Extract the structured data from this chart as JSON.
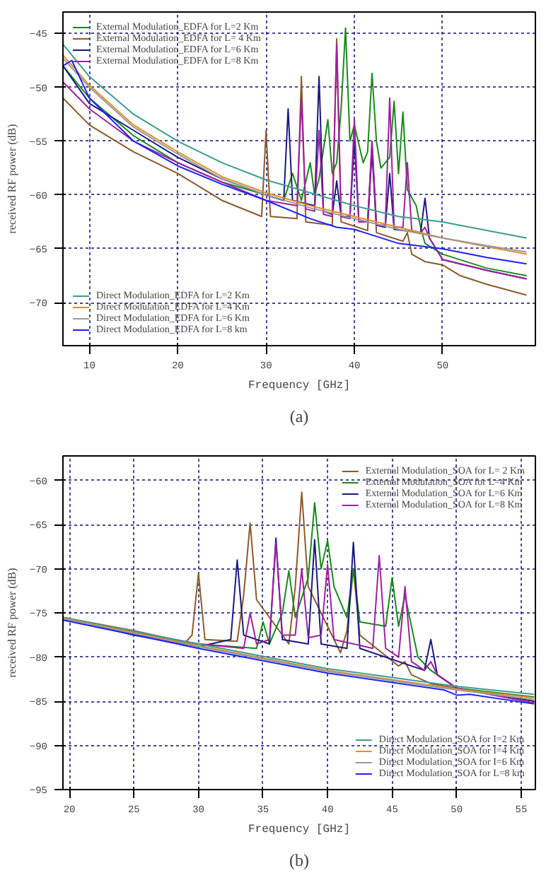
{
  "chart_data": [
    {
      "type": "line",
      "xlabel": "Frequency [GHz]",
      "ylabel": "received RF power (dB)",
      "annotations": [
        "(a)"
      ],
      "xlim": [
        7,
        60.5
      ],
      "ylim": [
        -74,
        -43
      ],
      "xticks": [
        10,
        20,
        30,
        40,
        50
      ],
      "yticks": [
        -45,
        -50,
        -55,
        -60,
        -65,
        -70
      ],
      "grid": true,
      "legend": "top left",
      "line_style": "solid",
      "series": [
        {
          "name": "External Modulation_EDFA for L=2 Km",
          "color": "#1a8a1a",
          "x": [
            7,
            10,
            15,
            20,
            25,
            30,
            32,
            33,
            34,
            35,
            35.5,
            36,
            37,
            37.5,
            38,
            38.5,
            39,
            39.5,
            40,
            41,
            41.5,
            42,
            42.5,
            43,
            44,
            44.5,
            45,
            45.5,
            46,
            47,
            47.5,
            48,
            50,
            55,
            59.5
          ],
          "values": [
            -48,
            -51,
            -54.5,
            -57,
            -58.8,
            -60,
            -60.5,
            -58,
            -60.5,
            -57,
            -60,
            -58.5,
            -53,
            -58,
            -57,
            -52,
            -44.5,
            -55,
            -53.5,
            -57,
            -56,
            -48.7,
            -55,
            -57.5,
            -56.5,
            -51.3,
            -58,
            -52.3,
            -59.5,
            -61,
            -63,
            -64.5,
            -65.5,
            -66.8,
            -67.5
          ]
        },
        {
          "name": "External Modulation_EDFA for L= 4 Km",
          "color": "#8b5a2b",
          "x": [
            7,
            10,
            15,
            20,
            25,
            29.5,
            30,
            30.5,
            33.5,
            34,
            34.5,
            37.5,
            38,
            38.5,
            41.5,
            42,
            42.5,
            45.5,
            46,
            46.5,
            48,
            50,
            52,
            55,
            59.5
          ],
          "values": [
            -51,
            -53.5,
            -56,
            -58,
            -60.5,
            -62,
            -54,
            -62,
            -62.2,
            -49,
            -62.5,
            -62.8,
            -45.5,
            -62.5,
            -63.3,
            -55,
            -63.5,
            -64.3,
            -63.5,
            -65.5,
            -66.2,
            -66.5,
            -67.5,
            -68.3,
            -69.3
          ]
        },
        {
          "name": "External Modulation_EDFA for L=6 Km",
          "color": "#1a1a80",
          "x": [
            7,
            10,
            15,
            20,
            25,
            30,
            32,
            32.5,
            33,
            35.5,
            36,
            36.5,
            37.5,
            38,
            38.5,
            39.5,
            40,
            40.5,
            41.5,
            42,
            42.5,
            43.5,
            44,
            44.5,
            47.5,
            48,
            48.5,
            50,
            55,
            59.5
          ],
          "values": [
            -48,
            -51.5,
            -54,
            -56.5,
            -58.5,
            -60,
            -60.5,
            -52,
            -60.5,
            -61,
            -49,
            -61.5,
            -61.8,
            -58.7,
            -62,
            -62,
            -55,
            -62.3,
            -62.5,
            -56,
            -62.8,
            -63,
            -58,
            -63.2,
            -63.5,
            -60.3,
            -64,
            -66,
            -67,
            -67.8
          ]
        },
        {
          "name": "External Modulation_EDFA for L=8 Km",
          "color": "#a020a0",
          "x": [
            7,
            10,
            15,
            20,
            25,
            30,
            33.5,
            34,
            34.5,
            35.5,
            36,
            36.5,
            37.5,
            38,
            38.5,
            39.5,
            40,
            40.5,
            41.5,
            42,
            42.5,
            43.5,
            44,
            44.5,
            45.5,
            46,
            46.5,
            47.5,
            48,
            48.5,
            50,
            55,
            59.5
          ],
          "values": [
            -49.5,
            -52,
            -55,
            -57,
            -58.8,
            -60.5,
            -61,
            -51,
            -61.3,
            -61.5,
            -54,
            -61.8,
            -62,
            -46,
            -62,
            -62.2,
            -53,
            -62.5,
            -62.5,
            -55,
            -62.8,
            -62.8,
            -51,
            -63,
            -63,
            -57,
            -63.3,
            -63.5,
            -63,
            -64,
            -66,
            -67,
            -67.8
          ]
        },
        {
          "name": "Direct Modulation_EDFA for L=2 Km",
          "color": "#3c9d8f",
          "x": [
            7,
            10,
            15,
            20,
            25,
            30,
            35,
            40,
            45,
            50,
            55,
            59.5
          ],
          "values": [
            -46,
            -49,
            -52.5,
            -55,
            -57,
            -58.6,
            -59.8,
            -61,
            -62,
            -62.5,
            -63.3,
            -64
          ]
        },
        {
          "name": "Direct Modulation_EDFA for L=4 Km",
          "color": "#e0902a",
          "x": [
            7,
            10,
            15,
            20,
            25,
            30,
            35,
            40,
            45,
            50,
            55,
            59.5
          ],
          "values": [
            -47,
            -49.8,
            -53.5,
            -56,
            -58.3,
            -59.8,
            -61,
            -62,
            -63,
            -64,
            -64.8,
            -65.5
          ]
        },
        {
          "name": "Direct Modulation_EDFA for L=6 Km",
          "color": "#999999",
          "x": [
            7,
            10,
            15,
            20,
            25,
            30,
            35,
            40,
            45,
            50,
            55,
            59.5
          ],
          "values": [
            -47.3,
            -50,
            -53.7,
            -56.2,
            -58.5,
            -60,
            -61.2,
            -62.2,
            -63.2,
            -64,
            -64.7,
            -65.3
          ]
        },
        {
          "name": "Direct Modulation_EDFA for L=8 km",
          "color": "#2020ff",
          "x": [
            7,
            8,
            10,
            15,
            20,
            25,
            30,
            35,
            38,
            40,
            45,
            50,
            55,
            59.5
          ],
          "values": [
            -48,
            -47.5,
            -51,
            -55,
            -57.3,
            -59,
            -60.5,
            -62.2,
            -63,
            -63.2,
            -64.5,
            -65,
            -65.8,
            -66.4
          ]
        }
      ]
    },
    {
      "type": "line",
      "xlabel": "Frequency [GHz]",
      "ylabel": "received RF power (dB)",
      "annotations": [
        "(b)"
      ],
      "xlim": [
        19.5,
        56.1
      ],
      "ylim": [
        -95,
        -57.2
      ],
      "xticks": [
        20,
        25,
        30,
        35,
        40,
        45,
        50,
        55
      ],
      "yticks": [
        -60,
        -65,
        -70,
        -75,
        -80,
        -85,
        -90,
        -95
      ],
      "grid": true,
      "legend": "top right",
      "line_style": "solid",
      "series": [
        {
          "name": "External Modulation_SOA for L= 2 Km",
          "color": "#8b5a2b",
          "x": [
            19.5,
            25,
            29,
            29.5,
            30,
            30.5,
            33,
            33.5,
            34,
            34.5,
            37,
            37.5,
            38,
            38.5,
            41,
            41.5,
            42,
            42.5,
            45.5,
            46,
            46.5,
            48,
            50,
            56
          ],
          "values": [
            -75.5,
            -77,
            -78.3,
            -77.5,
            -70.5,
            -78,
            -78.2,
            -73,
            -64.8,
            -73.5,
            -78.5,
            -72,
            -61.3,
            -72,
            -79.5,
            -77,
            -70,
            -77.5,
            -81,
            -80.5,
            -82,
            -83,
            -83.5,
            -85
          ]
        },
        {
          "name": "External Modulation_SOA for L=4 Km",
          "color": "#1a8a1a",
          "x": [
            19.5,
            25,
            30,
            34.5,
            35,
            35.5,
            36.5,
            37,
            37.5,
            38.5,
            39,
            39.5,
            40,
            40.5,
            41.5,
            42,
            42.5,
            44.5,
            45,
            45.5,
            46,
            47,
            48,
            50,
            56
          ],
          "values": [
            -75.5,
            -77.5,
            -78.5,
            -79,
            -76,
            -78.5,
            -75,
            -70.2,
            -75.5,
            -71,
            -62.5,
            -70,
            -66.8,
            -72,
            -75.5,
            -70,
            -76,
            -76.5,
            -71,
            -76.5,
            -73,
            -80,
            -81.5,
            -83.5,
            -84.5
          ]
        },
        {
          "name": "External Modulation_SOA for L=6 Km",
          "color": "#1a1a80",
          "x": [
            19.5,
            25,
            30,
            32.5,
            33,
            33.5,
            35.5,
            36,
            36.5,
            38.5,
            39,
            39.5,
            41.5,
            42,
            42.5,
            47.5,
            48,
            48.5,
            50,
            56
          ],
          "values": [
            -75.5,
            -77.5,
            -78.8,
            -78,
            -69,
            -77.5,
            -78.5,
            -66.5,
            -78,
            -78.5,
            -66.7,
            -78.5,
            -79,
            -67,
            -79,
            -81.5,
            -78,
            -82,
            -83.5,
            -85
          ]
        },
        {
          "name": "External Modulation_SOA for L=8 Km",
          "color": "#a020a0",
          "x": [
            19.5,
            25,
            30,
            33.5,
            34,
            34.5,
            35.5,
            36,
            36.5,
            37.5,
            38,
            38.5,
            39.5,
            40,
            40.5,
            43.5,
            44,
            44.5,
            45.5,
            46,
            46.5,
            47.5,
            48,
            48.5,
            50,
            56
          ],
          "values": [
            -75.5,
            -77.2,
            -78.5,
            -79,
            -75,
            -78.5,
            -78,
            -67,
            -77.5,
            -77.5,
            -70,
            -77.8,
            -77.5,
            -69.5,
            -78,
            -79,
            -68.5,
            -79,
            -80,
            -72,
            -80.5,
            -81.5,
            -80.5,
            -82,
            -83.5,
            -85.2
          ]
        },
        {
          "name": "Direct Modulation_SOA for I=2 Km",
          "color": "#3c9d8f",
          "x": [
            19.5,
            30,
            40,
            50,
            56
          ],
          "values": [
            -75.5,
            -78.5,
            -81.3,
            -83.3,
            -84.2
          ]
        },
        {
          "name": "Direct Modulation_SOA for I=4 Km",
          "color": "#e0902a",
          "x": [
            19.5,
            30,
            40,
            50,
            56
          ],
          "values": [
            -75.6,
            -78.7,
            -81.5,
            -83.6,
            -84.6
          ]
        },
        {
          "name": "Direct Modulation_SOA for I=6 Km",
          "color": "#999999",
          "x": [
            19.5,
            30,
            40,
            50,
            56
          ],
          "values": [
            -75.7,
            -78.8,
            -81.6,
            -83.7,
            -84.8
          ]
        },
        {
          "name": "Direct Modulation_SOA for L=8 km",
          "color": "#2020ff",
          "x": [
            19.5,
            30,
            40,
            49,
            50,
            51,
            56
          ],
          "values": [
            -75.8,
            -79,
            -81.8,
            -83.7,
            -84.3,
            -84.2,
            -85.3
          ]
        }
      ]
    }
  ]
}
